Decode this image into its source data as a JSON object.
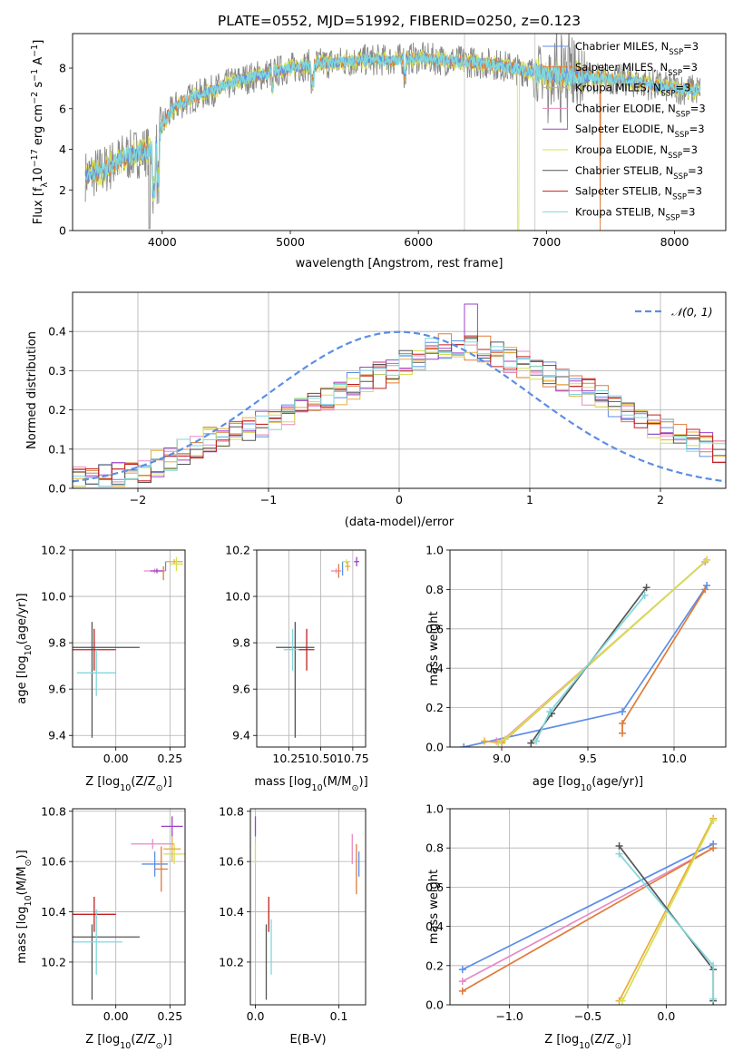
{
  "figure": {
    "title": "PLATE=0552, MJD=51992, FIBERID=0250, z=0.123"
  },
  "colors": {
    "chabrier_miles": "#5b8ee6",
    "salpeter_miles": "#e07b39",
    "kroupa_miles": "#e8ad3a",
    "chabrier_elodie": "#e78ac3",
    "salpeter_elodie": "#a040c8",
    "kroupa_elodie": "#d4e04f",
    "chabrier_stelib": "#555555",
    "salpeter_stelib": "#c0201f",
    "kroupa_stelib": "#7fd8dc",
    "spectrum_gray": "#888888",
    "gaussian": "#5b8ee6"
  },
  "chart_data": [
    {
      "id": "spectrum",
      "type": "line",
      "xlabel": "wavelength [Angstrom, rest frame]",
      "ylabel_main": "Flux [f",
      "ylabel_sub": "λ",
      "ylabel_rest": "10",
      "ylabel_exp": "−17",
      "ylabel_tail": " erg cm",
      "ylabel_exp2": "−2",
      "ylabel_tail2": " s",
      "ylabel_exp3": "−1",
      "ylabel_tail3": " A",
      "ylabel_exp4": "−1",
      "ylabel_end": "]",
      "xlim": [
        3300,
        8400
      ],
      "ylim": [
        0,
        9.7
      ],
      "xticks": [
        4000,
        5000,
        6000,
        7000,
        8000
      ],
      "yticks": [
        0,
        2,
        4,
        6,
        8
      ],
      "continuum": {
        "x": [
          3400,
          3550,
          3700,
          3850,
          3950,
          4000,
          4100,
          4250,
          4400,
          4600,
          4800,
          5000,
          5200,
          5400,
          5600,
          5800,
          6000,
          6200,
          6400,
          6600,
          6800,
          7000,
          7200,
          7400,
          7600,
          7800,
          8000,
          8200
        ],
        "y": [
          2.7,
          3.0,
          3.6,
          3.9,
          4.0,
          5.2,
          6.1,
          6.6,
          6.9,
          7.4,
          7.7,
          8.0,
          8.2,
          8.3,
          8.4,
          8.4,
          8.5,
          8.4,
          8.3,
          8.2,
          7.9,
          7.7,
          7.6,
          7.5,
          7.4,
          7.2,
          7.0,
          6.9
        ]
      },
      "legend": [
        {
          "name": "Chabrier MILES, N",
          "sub": "SSP",
          "tail": "=3",
          "color_key": "chabrier_miles"
        },
        {
          "name": "Salpeter MILES, N",
          "sub": "SSP",
          "tail": "=3",
          "color_key": "salpeter_miles"
        },
        {
          "name": "Kroupa MILES, N",
          "sub": "SSP",
          "tail": "=3",
          "color_key": "kroupa_miles"
        },
        {
          "name": "Chabrier ELODIE, N",
          "sub": "SSP",
          "tail": "=3",
          "color_key": "chabrier_elodie"
        },
        {
          "name": "Salpeter ELODIE, N",
          "sub": "SSP",
          "tail": "=3",
          "color_key": "salpeter_elodie"
        },
        {
          "name": "Kroupa ELODIE, N",
          "sub": "SSP",
          "tail": "=3",
          "color_key": "kroupa_elodie"
        },
        {
          "name": "Chabrier STELIB, N",
          "sub": "SSP",
          "tail": "=3",
          "color_key": "chabrier_stelib"
        },
        {
          "name": "Salpeter STELIB, N",
          "sub": "SSP",
          "tail": "=3",
          "color_key": "salpeter_stelib"
        },
        {
          "name": "Kroupa STELIB, N",
          "sub": "SSP",
          "tail": "=3",
          "color_key": "kroupa_stelib"
        }
      ],
      "legend_placement": "upper-right"
    },
    {
      "id": "residuals",
      "type": "histogram",
      "xlabel": "(data-model)/error",
      "ylabel": "Normed distribution",
      "xlim": [
        -2.5,
        2.5
      ],
      "ylim": [
        0,
        0.5
      ],
      "xticks": [
        -2,
        -1,
        0,
        1,
        2
      ],
      "xtick_labels": [
        "−2",
        "−1",
        "0",
        "1",
        "2"
      ],
      "yticks": [
        0.0,
        0.1,
        0.2,
        0.3,
        0.4
      ],
      "grid": true,
      "bin_width": 0.1,
      "base_density": {
        "x": [
          -2.5,
          -2.0,
          -1.5,
          -1.0,
          -0.5,
          0.0,
          0.3,
          0.6,
          1.0,
          1.5,
          2.0,
          2.5
        ],
        "y": [
          0.02,
          0.04,
          0.12,
          0.17,
          0.24,
          0.31,
          0.36,
          0.36,
          0.31,
          0.24,
          0.15,
          0.09
        ]
      },
      "gaussian": {
        "label": "𝒩(0, 1)",
        "mean": 0,
        "sigma": 1,
        "style": "dashed"
      },
      "legend_placement": "upper-right"
    },
    {
      "id": "z_age",
      "type": "errorbar",
      "xlabel": "Z [log",
      "xlabel_sub": "10",
      "xlabel_rest": "(Z/Z",
      "xlabel_sub2": "⊙",
      "xlabel_end": ")]",
      "ylabel": "age  [log",
      "ylabel_sub": "10",
      "ylabel_rest": "(age/yr)]",
      "xlim": [
        -0.2,
        0.32
      ],
      "ylim": [
        9.35,
        10.2
      ],
      "xticks": [
        0.0,
        0.25
      ],
      "xtick_labels": [
        "0.00",
        "0.25"
      ],
      "yticks": [
        9.4,
        9.6,
        9.8,
        10.0,
        10.2
      ],
      "points": [
        {
          "color_key": "chabrier_stelib",
          "x": -0.09,
          "xerr": 0.2,
          "y": 9.78,
          "yerr": 0.0
        },
        {
          "color_key": "chabrier_stelib",
          "x": -0.11,
          "xerr": 0.0,
          "y": 9.64,
          "yerr": 0.25
        },
        {
          "color_key": "salpeter_stelib",
          "x": -0.1,
          "xerr": 0.1,
          "y": 9.77,
          "yerr": 0.09
        },
        {
          "color_key": "kroupa_stelib",
          "x": -0.09,
          "xerr": 0.09,
          "y": 9.67,
          "yerr": 0.1
        },
        {
          "color_key": "chabrier_elodie",
          "x": 0.18,
          "xerr": 0.05,
          "y": 10.11,
          "yerr": 0.01
        },
        {
          "color_key": "salpeter_elodie",
          "x": 0.19,
          "xerr": 0.03,
          "y": 10.11,
          "yerr": 0.01
        },
        {
          "color_key": "salpeter_miles",
          "x": 0.22,
          "xerr": 0.0,
          "y": 10.1,
          "yerr": 0.03
        },
        {
          "color_key": "kroupa_miles",
          "x": 0.27,
          "xerr": 0.04,
          "y": 10.15,
          "yerr": 0.01
        },
        {
          "color_key": "kroupa_elodie",
          "x": 0.28,
          "xerr": 0.03,
          "y": 10.14,
          "yerr": 0.03
        },
        {
          "color_key": "chabrier_miles",
          "x": 0.23,
          "xerr": 0.0,
          "y": 10.13,
          "yerr": 0.02
        }
      ]
    },
    {
      "id": "mass_age",
      "type": "errorbar",
      "xlabel": "mass [log",
      "xlabel_sub": "10",
      "xlabel_rest": "(M/M",
      "xlabel_sub2": "⊙",
      "xlabel_end": ")]",
      "xlim": [
        0.0,
        0.85
      ],
      "ylim": [
        9.35,
        10.2
      ],
      "xticks": [
        0.25,
        0.5,
        0.75
      ],
      "xtick_labels": [
        "10.25",
        "10.50",
        "10.75"
      ],
      "yticks": [
        9.4,
        9.6,
        9.8,
        10.0,
        10.2
      ],
      "points": [
        {
          "color_key": "chabrier_stelib",
          "x": 0.3,
          "xerr": 0.15,
          "y": 9.78,
          "yerr": 0.0
        },
        {
          "color_key": "chabrier_stelib",
          "x": 0.3,
          "xerr": 0.0,
          "y": 9.64,
          "yerr": 0.25
        },
        {
          "color_key": "kroupa_stelib",
          "x": 0.28,
          "xerr": 0.07,
          "y": 9.77,
          "yerr": 0.09
        },
        {
          "color_key": "salpeter_stelib",
          "x": 0.39,
          "xerr": 0.06,
          "y": 9.77,
          "yerr": 0.09
        },
        {
          "color_key": "chabrier_elodie",
          "x": 0.62,
          "xerr": 0.04,
          "y": 10.11,
          "yerr": 0.01
        },
        {
          "color_key": "salpeter_miles",
          "x": 0.64,
          "xerr": 0.0,
          "y": 10.11,
          "yerr": 0.03
        },
        {
          "color_key": "chabrier_miles",
          "x": 0.67,
          "xerr": 0.0,
          "y": 10.12,
          "yerr": 0.03
        },
        {
          "color_key": "kroupa_elodie",
          "x": 0.7,
          "xerr": 0.03,
          "y": 10.15,
          "yerr": 0.01
        },
        {
          "color_key": "kroupa_miles",
          "x": 0.71,
          "xerr": 0.02,
          "y": 10.13,
          "yerr": 0.02
        },
        {
          "color_key": "salpeter_elodie",
          "x": 0.78,
          "xerr": 0.02,
          "y": 10.15,
          "yerr": 0.02
        }
      ]
    },
    {
      "id": "age_weight",
      "type": "line",
      "xlabel": "age  [log",
      "xlabel_sub": "10",
      "xlabel_rest": "(age/yr)]",
      "ylabel": "mass weight",
      "xlim": [
        8.7,
        10.3
      ],
      "ylim": [
        0.0,
        1.0
      ],
      "xticks": [
        9.0,
        9.5,
        10.0
      ],
      "xtick_labels": [
        "9.0",
        "9.5",
        "10.0"
      ],
      "yticks": [
        0.0,
        0.2,
        0.4,
        0.6,
        0.8,
        1.0
      ],
      "grid": true,
      "series": [
        {
          "color_key": "chabrier_miles",
          "x": [
            8.78,
            9.7,
            10.19
          ],
          "y": [
            0.0,
            0.18,
            0.82
          ]
        },
        {
          "color_key": "salpeter_miles",
          "x": [
            9.7,
            9.7,
            10.18
          ],
          "y": [
            0.07,
            0.12,
            0.8
          ]
        },
        {
          "color_key": "kroupa_miles",
          "x": [
            8.9,
            9.0,
            10.19
          ],
          "y": [
            0.03,
            0.02,
            0.95
          ]
        },
        {
          "color_key": "chabrier_elodie",
          "x": [
            8.97,
            9.0,
            10.18
          ],
          "y": [
            0.03,
            0.03,
            0.94
          ]
        },
        {
          "color_key": "kroupa_elodie",
          "x": [
            8.98,
            9.02,
            10.19
          ],
          "y": [
            0.02,
            0.04,
            0.95
          ]
        },
        {
          "color_key": "chabrier_stelib",
          "x": [
            9.17,
            9.29,
            9.84
          ],
          "y": [
            0.02,
            0.17,
            0.81
          ]
        },
        {
          "color_key": "kroupa_stelib",
          "x": [
            9.2,
            9.28,
            9.83
          ],
          "y": [
            0.03,
            0.18,
            0.77
          ]
        }
      ]
    },
    {
      "id": "z_mass",
      "type": "errorbar",
      "xlabel": "Z [log",
      "xlabel_sub": "10",
      "xlabel_rest": "(Z/Z",
      "xlabel_sub2": "⊙",
      "xlabel_end": ")]",
      "ylabel": "mass [log",
      "ylabel_sub": "10",
      "ylabel_rest": "(M/M",
      "ylabel_sub2": "⊙",
      "ylabel_end": ")]",
      "xlim": [
        -0.2,
        0.32
      ],
      "ylim": [
        10.03,
        10.81
      ],
      "xticks": [
        0.0,
        0.25
      ],
      "xtick_labels": [
        "0.00",
        "0.25"
      ],
      "yticks": [
        10.2,
        10.4,
        10.6,
        10.8
      ],
      "points": [
        {
          "color_key": "salpeter_stelib",
          "x": -0.1,
          "xerr": 0.1,
          "y": 10.39,
          "yerr": 0.07
        },
        {
          "color_key": "chabrier_stelib",
          "x": -0.09,
          "xerr": 0.2,
          "y": 10.3,
          "yerr": 0.0
        },
        {
          "color_key": "chabrier_stelib",
          "x": -0.11,
          "xerr": 0.0,
          "y": 10.2,
          "yerr": 0.15
        },
        {
          "color_key": "kroupa_stelib",
          "x": -0.09,
          "xerr": 0.12,
          "y": 10.28,
          "yerr": 0.13
        },
        {
          "color_key": "salpeter_elodie",
          "x": 0.26,
          "xerr": 0.05,
          "y": 10.74,
          "yerr": 0.04
        },
        {
          "color_key": "chabrier_elodie",
          "x": 0.17,
          "xerr": 0.1,
          "y": 10.67,
          "yerr": 0.02
        },
        {
          "color_key": "kroupa_elodie",
          "x": 0.27,
          "xerr": 0.05,
          "y": 10.63,
          "yerr": 0.04
        },
        {
          "color_key": "kroupa_miles",
          "x": 0.26,
          "xerr": 0.04,
          "y": 10.65,
          "yerr": 0.05
        },
        {
          "color_key": "chabrier_miles",
          "x": 0.18,
          "xerr": 0.06,
          "y": 10.59,
          "yerr": 0.05
        },
        {
          "color_key": "salpeter_miles",
          "x": 0.21,
          "xerr": 0.03,
          "y": 10.57,
          "yerr": 0.09
        }
      ]
    },
    {
      "id": "ebv_mass",
      "type": "errorbar",
      "xlabel": "E(B-V)",
      "xlim": [
        -0.006,
        0.132
      ],
      "ylim": [
        10.03,
        10.81
      ],
      "xticks": [
        0.0,
        0.1
      ],
      "xtick_labels": [
        "0.0",
        "0.1"
      ],
      "yticks": [
        10.2,
        10.4,
        10.6,
        10.8
      ],
      "points": [
        {
          "color_key": "salpeter_elodie",
          "x": 0.0,
          "xerr": 0.0,
          "y": 10.74,
          "yerr": 0.04
        },
        {
          "color_key": "kroupa_elodie",
          "x": 0.0,
          "xerr": 0.0,
          "y": 10.63,
          "yerr": 0.04
        },
        {
          "color_key": "chabrier_stelib",
          "x": 0.013,
          "xerr": 0.0,
          "y": 10.2,
          "yerr": 0.15
        },
        {
          "color_key": "salpeter_stelib",
          "x": 0.016,
          "xerr": 0.0,
          "y": 10.39,
          "yerr": 0.07
        },
        {
          "color_key": "kroupa_stelib",
          "x": 0.019,
          "xerr": 0.0,
          "y": 10.26,
          "yerr": 0.11
        },
        {
          "color_key": "chabrier_elodie",
          "x": 0.116,
          "xerr": 0.0,
          "y": 10.65,
          "yerr": 0.06
        },
        {
          "color_key": "salpeter_miles",
          "x": 0.121,
          "xerr": 0.0,
          "y": 10.57,
          "yerr": 0.1
        },
        {
          "color_key": "chabrier_miles",
          "x": 0.124,
          "xerr": 0.0,
          "y": 10.59,
          "yerr": 0.05
        }
      ]
    },
    {
      "id": "z_weight",
      "type": "line",
      "xlabel": "Z [log",
      "xlabel_sub": "10",
      "xlabel_rest": "(Z/Z",
      "xlabel_sub2": "⊙",
      "xlabel_end": ")]",
      "ylabel": "mass weight",
      "xlim": [
        -1.38,
        0.38
      ],
      "ylim": [
        0.0,
        1.0
      ],
      "xticks": [
        -1.0,
        -0.5,
        0.0
      ],
      "xtick_labels": [
        "−1.0",
        "−0.5",
        "0.0"
      ],
      "yticks": [
        0.0,
        0.2,
        0.4,
        0.6,
        0.8,
        1.0
      ],
      "grid": true,
      "series": [
        {
          "color_key": "chabrier_miles",
          "x": [
            -1.3,
            0.3
          ],
          "y": [
            0.18,
            0.82
          ]
        },
        {
          "color_key": "chabrier_elodie",
          "x": [
            -1.3,
            0.3
          ],
          "y": [
            0.12,
            0.8
          ]
        },
        {
          "color_key": "salpeter_miles",
          "x": [
            -1.3,
            0.3
          ],
          "y": [
            0.07,
            0.8
          ]
        },
        {
          "color_key": "kroupa_miles",
          "x": [
            -0.3,
            0.3
          ],
          "y": [
            0.02,
            0.95
          ]
        },
        {
          "color_key": "kroupa_elodie",
          "x": [
            -0.28,
            0.3
          ],
          "y": [
            0.02,
            0.94
          ]
        },
        {
          "color_key": "chabrier_stelib",
          "x": [
            -0.3,
            0.3,
            0.3
          ],
          "y": [
            0.81,
            0.18,
            0.02
          ]
        },
        {
          "color_key": "kroupa_stelib",
          "x": [
            -0.3,
            0.3,
            0.3
          ],
          "y": [
            0.77,
            0.2,
            0.03
          ]
        }
      ]
    }
  ]
}
